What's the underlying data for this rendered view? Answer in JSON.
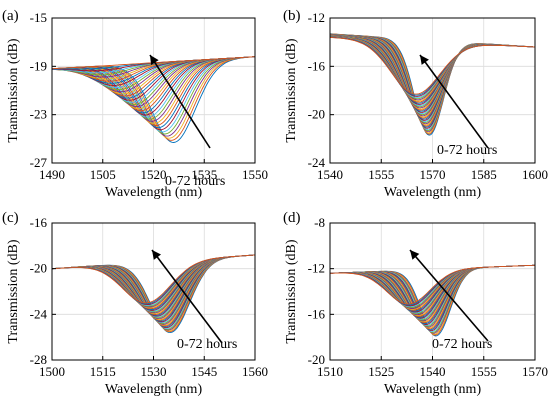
{
  "chart_data": [
    {
      "panel_label": "(a)",
      "type": "line",
      "xlabel": "Wavelength (nm)",
      "ylabel": "Transmission (dB)",
      "xlim": [
        1490,
        1550
      ],
      "ylim": [
        -27,
        -15
      ],
      "xticks": [
        1490,
        1505,
        1520,
        1535,
        1550
      ],
      "yticks": [
        -27,
        -23,
        -19,
        -15
      ],
      "grid": true,
      "annotation": "0-72 hours",
      "curve_count": 37,
      "curves_start": {
        "dip_wavelength": 1526,
        "dip_transmission": -25.3,
        "width": 9,
        "edge_left": -19.2,
        "edge_right": -18.2
      },
      "curves_end": {
        "dip_wavelength": 1503,
        "dip_transmission": -19.0,
        "width": 10,
        "edge_left": -19.2,
        "edge_right": -18.2
      }
    },
    {
      "panel_label": "(b)",
      "type": "line",
      "xlabel": "Wavelength (nm)",
      "ylabel": "Transmission (dB)",
      "xlim": [
        1540,
        1600
      ],
      "ylim": [
        -24,
        -12
      ],
      "xticks": [
        1540,
        1555,
        1570,
        1585,
        1600
      ],
      "yticks": [
        -24,
        -20,
        -16,
        -12
      ],
      "grid": true,
      "annotation": "0-72 hours",
      "curve_count": 37,
      "curves_start": {
        "dip_wavelength": 1569,
        "dip_transmission": -21.7,
        "width": 6,
        "edge_left": -13.3,
        "edge_right": -14.4
      },
      "curves_end": {
        "dip_wavelength": 1565,
        "dip_transmission": -18.3,
        "width": 10,
        "edge_left": -13.6,
        "edge_right": -14.4
      }
    },
    {
      "panel_label": "(c)",
      "type": "line",
      "xlabel": "Wavelength (nm)",
      "ylabel": "Transmission (dB)",
      "xlim": [
        1500,
        1560
      ],
      "ylim": [
        -28,
        -16
      ],
      "xticks": [
        1500,
        1515,
        1530,
        1545,
        1560
      ],
      "yticks": [
        -28,
        -24,
        -20,
        -16
      ],
      "grid": true,
      "annotation": "0-72 hours",
      "curve_count": 37,
      "curves_start": {
        "dip_wavelength": 1535,
        "dip_transmission": -25.6,
        "width": 8,
        "edge_left": -20.0,
        "edge_right": -18.8
      },
      "curves_end": {
        "dip_wavelength": 1528,
        "dip_transmission": -23.0,
        "width": 10,
        "edge_left": -20.0,
        "edge_right": -18.8
      }
    },
    {
      "panel_label": "(d)",
      "type": "line",
      "xlabel": "Wavelength (nm)",
      "ylabel": "Transmission (dB)",
      "xlim": [
        1510,
        1570
      ],
      "ylim": [
        -20,
        -8
      ],
      "xticks": [
        1510,
        1525,
        1540,
        1555,
        1570
      ],
      "yticks": [
        -20,
        -16,
        -12,
        -8
      ],
      "grid": true,
      "annotation": "0-72 hours",
      "curve_count": 37,
      "curves_start": {
        "dip_wavelength": 1541,
        "dip_transmission": -17.9,
        "width": 6,
        "edge_left": -12.4,
        "edge_right": -11.7
      },
      "curves_end": {
        "dip_wavelength": 1533,
        "dip_transmission": -15.1,
        "width": 9,
        "edge_left": -12.4,
        "edge_right": -11.7
      }
    }
  ],
  "series_colors": [
    "#0072BD",
    "#D95319",
    "#EDB120",
    "#7E2F8E",
    "#77AC30",
    "#4DBEEE",
    "#A2142F"
  ]
}
